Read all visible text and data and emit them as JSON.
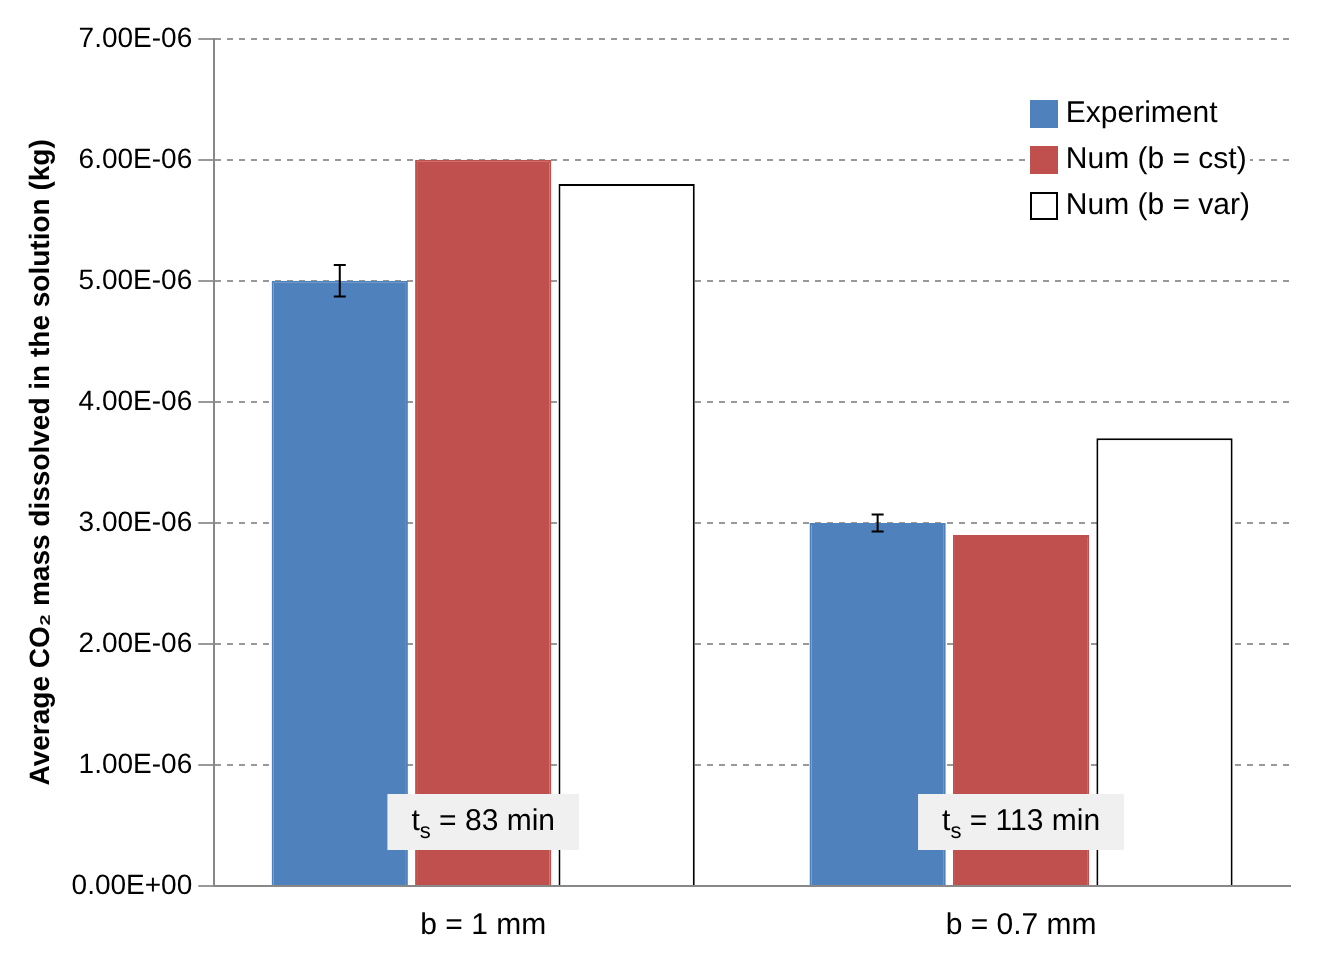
{
  "chart_data": {
    "type": "bar",
    "ylabel": "Average CO₂ mass dissolved in the solution (kg)",
    "categories": [
      "b = 1 mm",
      "b = 0.7 mm"
    ],
    "series": [
      {
        "name": "Experiment",
        "color": "#4f81bd",
        "values": [
          5e-06,
          3e-06
        ],
        "errors": [
          1.3e-07,
          7e-08
        ]
      },
      {
        "name": "Num (b = cst)",
        "color": "#c0504d",
        "values": [
          6e-06,
          2.9e-06
        ]
      },
      {
        "name": "Num (b = var)",
        "color": "#ffffff",
        "values": [
          5.8e-06,
          3.7e-06
        ]
      }
    ],
    "ylim": [
      0,
      7e-06
    ],
    "yticks": [
      {
        "value": 0,
        "label": "0.00E+00"
      },
      {
        "value": 1e-06,
        "label": "1.00E-06"
      },
      {
        "value": 2e-06,
        "label": "2.00E-06"
      },
      {
        "value": 3e-06,
        "label": "3.00E-06"
      },
      {
        "value": 4e-06,
        "label": "4.00E-06"
      },
      {
        "value": 5e-06,
        "label": "5.00E-06"
      },
      {
        "value": 6e-06,
        "label": "6.00E-06"
      },
      {
        "value": 7e-06,
        "label": "7.00E-06"
      }
    ],
    "annotations": [
      "t$_{s}$ = 83 min",
      "t$_{s}$ = 113 min"
    ],
    "grid": "y",
    "line_style": "dashed",
    "legend": "top right"
  }
}
